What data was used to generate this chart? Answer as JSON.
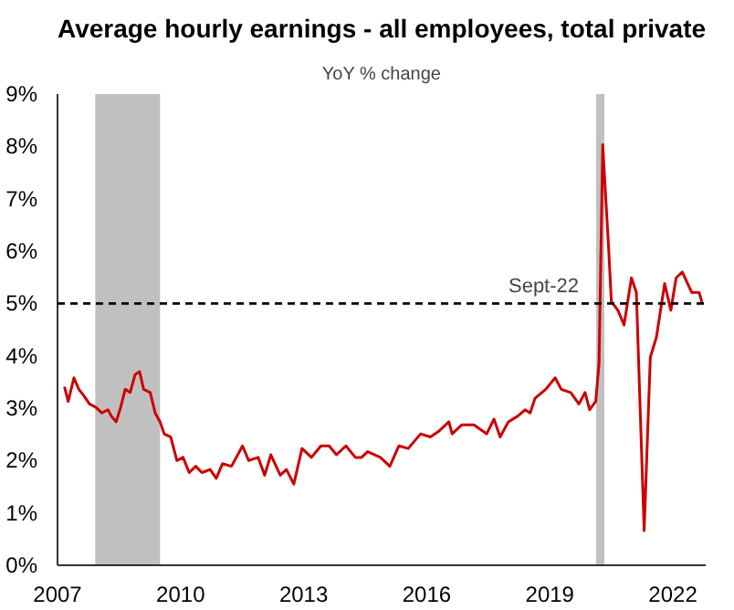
{
  "chart_data": {
    "type": "line",
    "title": "Average hourly earnings - all employees, total private",
    "subtitle": "YoY % change",
    "series": [
      {
        "color": "#cc0000",
        "x": [
          2007.17,
          2007.26,
          2007.4,
          2007.52,
          2007.63,
          2007.78,
          2007.93,
          2008.08,
          2008.23,
          2008.31,
          2008.43,
          2008.54,
          2008.65,
          2008.77,
          2008.89,
          2009.0,
          2009.1,
          2009.26,
          2009.38,
          2009.5,
          2009.6,
          2009.76,
          2009.91,
          2010.06,
          2010.21,
          2010.37,
          2010.52,
          2010.72,
          2010.87,
          2011.02,
          2011.24,
          2011.51,
          2011.66,
          2011.89,
          2012.05,
          2012.2,
          2012.43,
          2012.58,
          2012.76,
          2012.96,
          2013.19,
          2013.42,
          2013.62,
          2013.8,
          2014.03,
          2014.26,
          2014.41,
          2014.56,
          2014.87,
          2015.1,
          2015.32,
          2015.55,
          2015.85,
          2016.09,
          2016.31,
          2016.54,
          2016.62,
          2016.85,
          2017.15,
          2017.46,
          2017.64,
          2017.79,
          2017.99,
          2018.22,
          2018.4,
          2018.52,
          2018.64,
          2018.9,
          2019.13,
          2019.28,
          2019.51,
          2019.71,
          2019.86,
          2019.97,
          2020.12,
          2020.2,
          2020.29,
          2020.43,
          2020.5,
          2020.66,
          2020.81,
          2020.99,
          2021.11,
          2021.3,
          2021.45,
          2021.6,
          2021.8,
          2021.95,
          2022.08,
          2022.23,
          2022.46,
          2022.64,
          2022.72
        ],
        "values": [
          3.41,
          3.13,
          3.58,
          3.36,
          3.25,
          3.08,
          3.02,
          2.91,
          2.97,
          2.85,
          2.74,
          3.02,
          3.36,
          3.3,
          3.64,
          3.7,
          3.36,
          3.3,
          2.91,
          2.74,
          2.51,
          2.45,
          2.0,
          2.06,
          1.77,
          1.89,
          1.77,
          1.83,
          1.66,
          1.94,
          1.89,
          2.28,
          2.0,
          2.06,
          1.72,
          2.11,
          1.72,
          1.83,
          1.55,
          2.23,
          2.06,
          2.28,
          2.28,
          2.11,
          2.28,
          2.06,
          2.06,
          2.17,
          2.06,
          1.89,
          2.28,
          2.23,
          2.51,
          2.45,
          2.57,
          2.74,
          2.51,
          2.68,
          2.68,
          2.51,
          2.79,
          2.45,
          2.74,
          2.85,
          2.97,
          2.91,
          3.19,
          3.36,
          3.58,
          3.36,
          3.3,
          3.08,
          3.3,
          2.97,
          3.13,
          3.86,
          8.03,
          6.11,
          5.04,
          4.87,
          4.59,
          5.49,
          5.21,
          0.66,
          3.97,
          4.36,
          5.38,
          4.87,
          5.49,
          5.6,
          5.21,
          5.21,
          4.99
        ]
      }
    ],
    "xlim": [
      2007,
      2022.8
    ],
    "xticks": [
      2007,
      2010,
      2013,
      2016,
      2019,
      2022
    ],
    "ylim": [
      0,
      9
    ],
    "yticks": [
      {
        "value": 0,
        "label": "0%"
      },
      {
        "value": 1,
        "label": "1%"
      },
      {
        "value": 2,
        "label": "2%"
      },
      {
        "value": 3,
        "label": "3%"
      },
      {
        "value": 4,
        "label": "4%"
      },
      {
        "value": 5,
        "label": "5%"
      },
      {
        "value": 6,
        "label": "6%"
      },
      {
        "value": 7,
        "label": "7%"
      },
      {
        "value": 8,
        "label": "8%"
      },
      {
        "value": 9,
        "label": "9%"
      }
    ],
    "ref_lines": [
      {
        "axis": "y",
        "value": 5,
        "label": "Sept-22",
        "color": "#000000",
        "line_style": "dashed"
      }
    ],
    "bands": [
      {
        "axis": "x",
        "from": 2007.92,
        "to": 2009.5,
        "color": "#c0c0c0"
      },
      {
        "axis": "x",
        "from": 2020.13,
        "to": 2020.33,
        "color": "#c0c0c0"
      }
    ],
    "grid": false
  }
}
